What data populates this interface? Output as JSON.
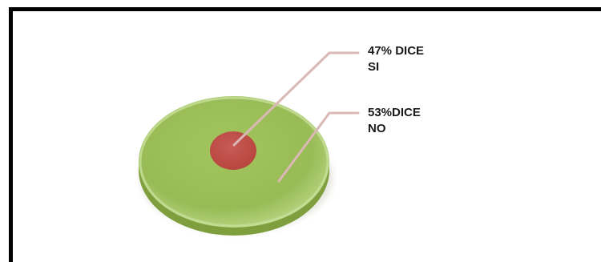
{
  "chart_data": {
    "type": "pie",
    "title": "",
    "slices": [
      {
        "label_lines": [
          "47% DICE",
          "SI"
        ],
        "value": 47,
        "color": "#c0504d"
      },
      {
        "label_lines": [
          "53%DICE",
          "NO"
        ],
        "value": 53,
        "color": "#9bbb59"
      }
    ],
    "colors": {
      "leader_line": "#d9b8b6",
      "pie_side": "#7f9e3d"
    }
  }
}
